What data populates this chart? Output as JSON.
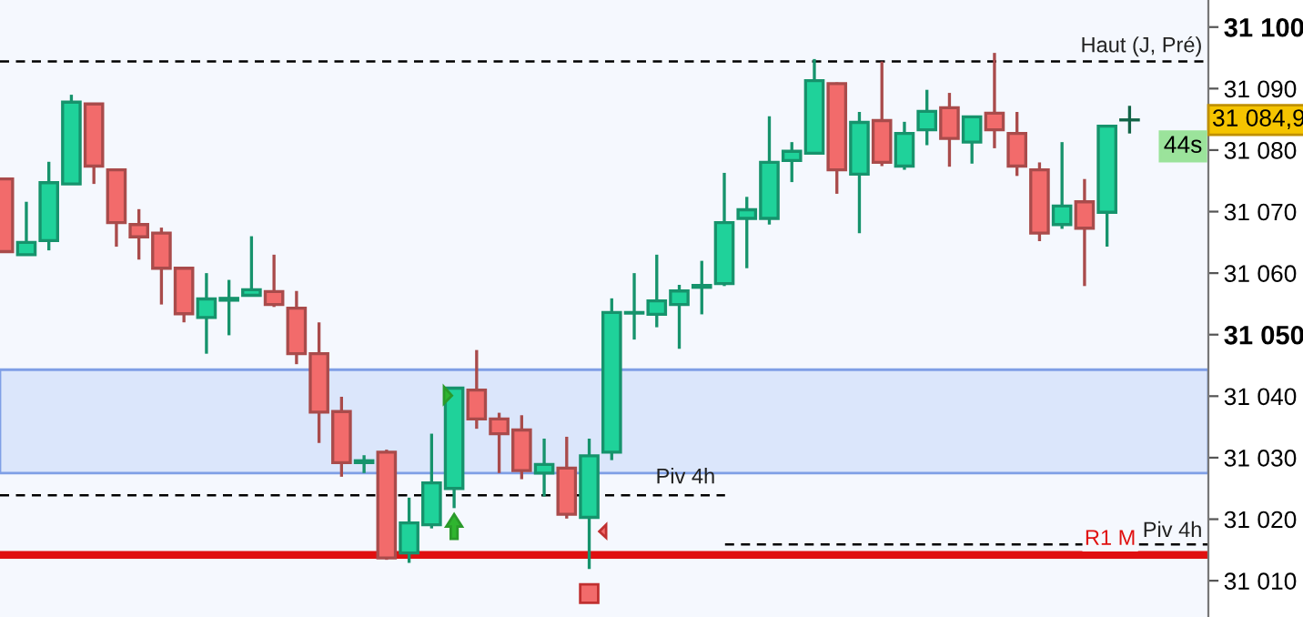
{
  "chart_data": {
    "type": "candlestick",
    "categories": [
      null,
      null,
      null,
      null,
      null,
      null,
      null,
      null,
      null,
      null,
      null,
      null,
      null,
      null,
      null,
      null,
      null,
      null,
      null,
      null,
      null,
      null,
      null,
      null,
      null,
      null,
      null,
      null,
      null,
      null,
      null,
      null,
      null,
      null,
      null,
      null,
      null,
      null,
      null,
      null,
      null,
      null,
      null,
      null,
      null,
      null,
      null,
      null,
      null,
      null,
      null
    ],
    "ohlc": [
      [
        31075.3,
        31075.3,
        31063.5,
        31063.5
      ],
      [
        31063.0,
        31071.6,
        31063.0,
        31065.0
      ],
      [
        31065.3,
        31078.1,
        31063.7,
        31074.7
      ],
      [
        31074.5,
        31089.0,
        31074.5,
        31087.8
      ],
      [
        31087.5,
        31087.5,
        31074.5,
        31077.4
      ],
      [
        31076.8,
        31076.8,
        31064.3,
        31068.2
      ],
      [
        31067.9,
        31070.4,
        31062.2,
        31065.9
      ],
      [
        31066.5,
        31067.4,
        31054.9,
        31060.8
      ],
      [
        31060.8,
        31060.8,
        31052.0,
        31053.4
      ],
      [
        31052.8,
        31060.0,
        31046.9,
        31055.8
      ],
      [
        31055.6,
        31058.9,
        31049.9,
        31055.9
      ],
      [
        31056.4,
        31066.0,
        31056.4,
        31057.3
      ],
      [
        31057.0,
        31063.0,
        31054.5,
        31054.9
      ],
      [
        31054.3,
        31057.1,
        31045.2,
        31046.9
      ],
      [
        31046.9,
        31052.0,
        31032.4,
        31037.4
      ],
      [
        31037.5,
        31039.9,
        31026.9,
        31029.2
      ],
      [
        31029.2,
        31030.4,
        31027.5,
        31029.5
      ],
      [
        31030.9,
        31031.3,
        31013.4,
        31013.7
      ],
      [
        31014.5,
        31023.5,
        31012.9,
        31019.4
      ],
      [
        31019.1,
        31033.9,
        31018.5,
        31025.9
      ],
      [
        31025.0,
        31041.3,
        31021.8,
        31041.3
      ],
      [
        31041.0,
        31047.5,
        31034.7,
        31036.3
      ],
      [
        31036.3,
        31037.3,
        31027.5,
        31033.9
      ],
      [
        31034.5,
        31036.9,
        31026.5,
        31027.9
      ],
      [
        31027.5,
        31033.1,
        31023.7,
        31028.9
      ],
      [
        31028.3,
        31033.4,
        31020.1,
        31020.8
      ],
      [
        31020.3,
        31033.1,
        31011.9,
        31030.3
      ],
      [
        31030.9,
        31055.9,
        31029.6,
        31053.6
      ],
      [
        31053.5,
        31060.0,
        31049.2,
        31053.6
      ],
      [
        31053.3,
        31063.0,
        31051.2,
        31055.5
      ],
      [
        31054.9,
        31058.1,
        31047.7,
        31057.1
      ],
      [
        31057.7,
        31062.0,
        31053.3,
        31058.0
      ],
      [
        31058.3,
        31076.3,
        31057.9,
        31068.2
      ],
      [
        31068.9,
        31072.4,
        31060.8,
        31070.3
      ],
      [
        31068.9,
        31085.5,
        31067.9,
        31078.0
      ],
      [
        31078.3,
        31081.3,
        31074.8,
        31079.8
      ],
      [
        31079.5,
        31094.8,
        31079.5,
        31091.3
      ],
      [
        31090.8,
        31091.0,
        31072.9,
        31076.8
      ],
      [
        31076.1,
        31086.2,
        31066.5,
        31084.5
      ],
      [
        31084.8,
        31094.4,
        31077.4,
        31078.0
      ],
      [
        31077.4,
        31084.6,
        31076.8,
        31082.7
      ],
      [
        31083.3,
        31089.8,
        31080.8,
        31086.3
      ],
      [
        31086.9,
        31089.3,
        31077.3,
        31081.9
      ],
      [
        31081.3,
        31085.4,
        31077.8,
        31085.4
      ],
      [
        31086.0,
        31095.8,
        31080.3,
        31083.3
      ],
      [
        31082.7,
        31086.2,
        31075.8,
        31077.4
      ],
      [
        31076.8,
        31078.0,
        31065.2,
        31066.5
      ],
      [
        31067.9,
        31081.3,
        31067.2,
        31070.9
      ],
      [
        31071.6,
        31075.3,
        31057.9,
        31067.3
      ],
      [
        31069.9,
        31083.9,
        31064.3,
        31083.9
      ],
      [
        31084.9,
        31087.2,
        31082.7,
        31084.9
      ]
    ],
    "colors": [
      "#f26b6b",
      "#1fd29a",
      "#1fd29a",
      "#1fd29a",
      "#f26b6b",
      "#f26b6b",
      "#f26b6b",
      "#f26b6b",
      "#f26b6b",
      "#1fd29a",
      "#1fd29a",
      "#1fd29a",
      "#f26b6b",
      "#f26b6b",
      "#f26b6b",
      "#f26b6b",
      "#1fd29a",
      "#f26b6b",
      "#1fd29a",
      "#1fd29a",
      "#1fd29a",
      "#f26b6b",
      "#f26b6b",
      "#f26b6b",
      "#1fd29a",
      "#f26b6b",
      "#1fd29a",
      "#1fd29a",
      "#1fd29a",
      "#1fd29a",
      "#1fd29a",
      "#1fd29a",
      "#1fd29a",
      "#1fd29a",
      "#1fd29a",
      "#1fd29a",
      "#1fd29a",
      "#f26b6b",
      "#1fd29a",
      "#f26b6b",
      "#1fd29a",
      "#1fd29a",
      "#f26b6b",
      "#1fd29a",
      "#f26b6b",
      "#f26b6b",
      "#f26b6b",
      "#1fd29a",
      "#f26b6b",
      "#1fd29a",
      "#1a8f66"
    ],
    "ylim": [
      31004.1,
      31104.4
    ],
    "yticks": [
      {
        "value": 31010,
        "label": "31 010"
      },
      {
        "value": 31020,
        "label": "31 020"
      },
      {
        "value": 31030,
        "label": "31 030"
      },
      {
        "value": 31040,
        "label": "31 040"
      },
      {
        "value": 31050,
        "label": "31 050"
      },
      {
        "value": 31060,
        "label": "31 060"
      },
      {
        "value": 31070,
        "label": "31 070"
      },
      {
        "value": 31080,
        "label": "31 080"
      },
      {
        "value": 31090,
        "label": "31 090"
      },
      {
        "value": 31100,
        "label": "31 100"
      }
    ],
    "ref_lines": [
      {
        "axis": "y",
        "value": 31094.4,
        "label": "Haut (J, Pré)",
        "color": "#000000",
        "line_style": "dashed"
      },
      {
        "axis": "y",
        "value": 31023.9,
        "label": "Piv 4h",
        "color": "#000000",
        "line_style": "dashed"
      },
      {
        "axis": "y",
        "value": 31015.9,
        "label": "Piv 4h",
        "color": "#000000",
        "line_style": "dashed"
      },
      {
        "axis": "y",
        "value": 31014.2,
        "label": "R1 M",
        "color": "#e01010",
        "line_style": "solid"
      }
    ],
    "bands": [
      {
        "axis": "y",
        "from": 31027.5,
        "to": 31044.3,
        "color": "#dbe6fb"
      }
    ],
    "annotations": [
      "31 084,9",
      "44s"
    ],
    "grid": false
  }
}
